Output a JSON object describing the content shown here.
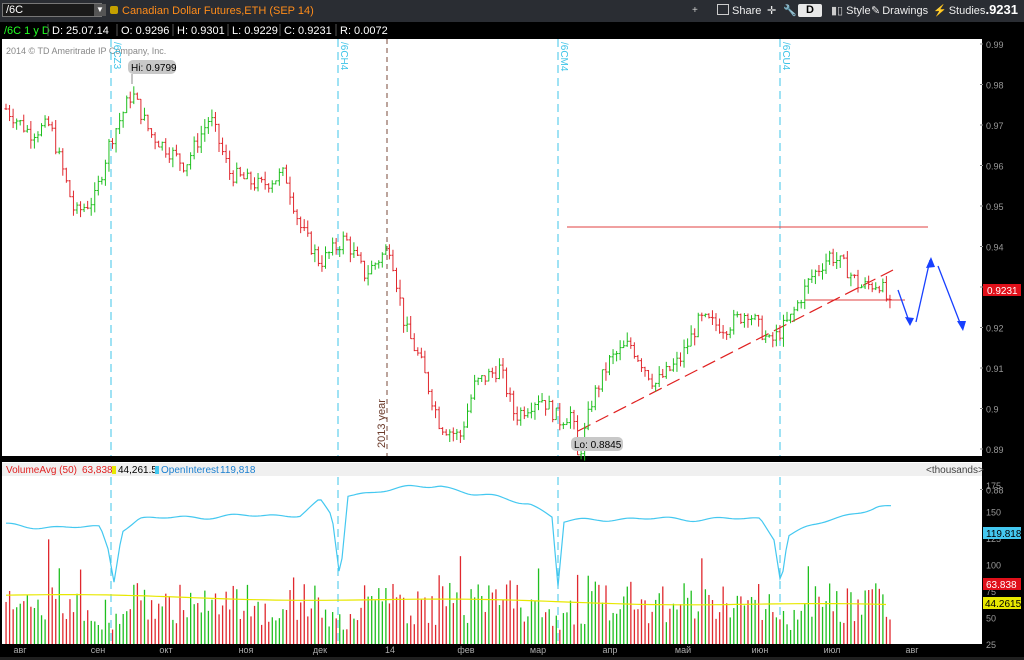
{
  "toolbar": {
    "symbol": "/6C",
    "description": "Canadian Dollar Futures,ETH (SEP 14)",
    "share": "Share",
    "style": "Style",
    "drawings": "Drawings",
    "studies": "Studies",
    "d_button": "D",
    "last_price": ".9231"
  },
  "info_bar": {
    "period": "/6C 1 y D",
    "date": "D: 25.07.14",
    "open": "O: 0.9296",
    "high": "H: 0.9301",
    "low": "L: 0.9229",
    "close": "C: 0.9231",
    "range": "R: 0.0072"
  },
  "copyright": "2014 © TD Ameritrade IP Company, Inc.",
  "price_axis": {
    "ticks": [
      "0.99",
      "0.98",
      "0.97",
      "0.96",
      "0.95",
      "0.94",
      "0.93",
      "0.92",
      "0.91",
      "0.9",
      "0.89",
      "0.88"
    ],
    "current": "0.9231"
  },
  "contract_labels": [
    "/6CZ3",
    "/6CH4",
    "/6CM4",
    "/6CU4"
  ],
  "year_label": "2013 year",
  "hi_label": "Hi: 0.9799",
  "lo_label": "Lo: 0.8845",
  "lower": {
    "volume_label": "VolumeAvg (50)",
    "volume_value": "63,838",
    "avg_value": "44,261.5",
    "oi_label": "OpenInterest",
    "oi_value": "119,818",
    "units": "<thousands>",
    "axis_ticks": [
      "175",
      "150",
      "125",
      "100",
      "75",
      "50",
      "25"
    ],
    "badge_oi": "119.818",
    "badge_vol": "63.838",
    "badge_avg": "44.2615"
  },
  "months": [
    "авг",
    "сен",
    "окт",
    "ноя",
    "дек",
    "14",
    "фев",
    "мар",
    "апр",
    "май",
    "июн",
    "июл",
    "авг"
  ],
  "colors": {
    "up": "#1fbf1f",
    "down": "#e0282e",
    "oi": "#44c8f0",
    "avg": "#e8e800",
    "vline": "#3fc4e8",
    "price_badge": "#e0101a"
  }
}
